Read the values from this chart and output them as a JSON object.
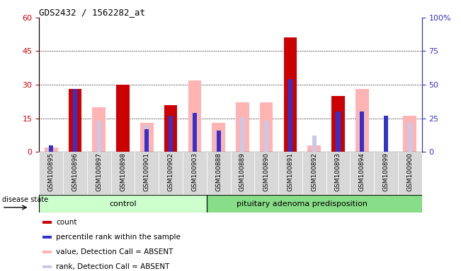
{
  "title": "GDS2432 / 1562282_at",
  "samples": [
    "GSM100895",
    "GSM100896",
    "GSM100897",
    "GSM100898",
    "GSM100901",
    "GSM100902",
    "GSM100903",
    "GSM100888",
    "GSM100889",
    "GSM100890",
    "GSM100891",
    "GSM100892",
    "GSM100893",
    "GSM100894",
    "GSM100899",
    "GSM100900"
  ],
  "count": [
    0,
    28,
    0,
    30,
    0,
    21,
    0,
    0,
    0,
    0,
    51,
    0,
    25,
    0,
    0,
    0
  ],
  "percentile_rank": [
    5,
    47,
    0,
    0,
    17,
    27,
    29,
    16,
    0,
    0,
    54,
    0,
    30,
    30,
    27,
    0
  ],
  "value_absent": [
    2,
    0,
    20,
    13,
    13,
    0,
    32,
    13,
    22,
    22,
    0,
    3,
    0,
    28,
    0,
    16
  ],
  "rank_absent": [
    0,
    0,
    23,
    0,
    20,
    0,
    0,
    0,
    26,
    23,
    0,
    12,
    0,
    0,
    25,
    22
  ],
  "n_control": 7,
  "left_ylim": [
    0,
    60
  ],
  "right_ylim": [
    0,
    100
  ],
  "left_yticks": [
    0,
    15,
    30,
    45,
    60
  ],
  "right_yticks": [
    0,
    25,
    50,
    75,
    100
  ],
  "left_ytick_labels": [
    "0",
    "15",
    "30",
    "45",
    "60"
  ],
  "right_ytick_labels": [
    "0",
    "25",
    "50",
    "75",
    "100%"
  ],
  "color_count": "#cc0000",
  "color_percentile": "#3333cc",
  "color_value_absent": "#ffb3b3",
  "color_rank_absent": "#c8c8e8",
  "color_control_bg": "#ccffcc",
  "color_pituitary_bg": "#88dd88",
  "color_xtick_bg": "#d8d8d8",
  "bar_width": 0.55,
  "blue_bar_width": 0.18
}
